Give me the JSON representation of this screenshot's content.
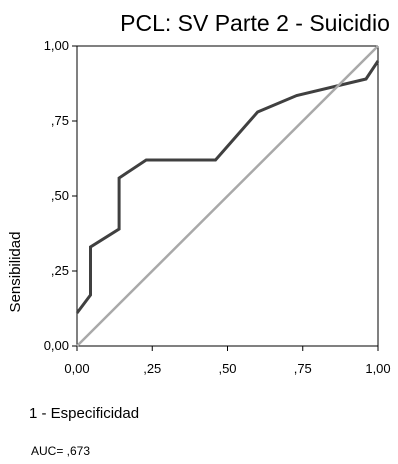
{
  "chart_data": {
    "type": "line",
    "title": "PCL: SV Parte 2 - Suicidio",
    "xlabel": "1 - Especificidad",
    "ylabel": "Sensibilidad",
    "xlim": [
      0,
      1
    ],
    "ylim": [
      0,
      1
    ],
    "x_ticks": [
      {
        "value": 0,
        "label": "0,00"
      },
      {
        "value": 0.25,
        "label": ",25"
      },
      {
        "value": 0.5,
        "label": ",50"
      },
      {
        "value": 0.75,
        "label": ",75"
      },
      {
        "value": 1,
        "label": "1,00"
      }
    ],
    "y_ticks": [
      {
        "value": 0,
        "label": "0,00"
      },
      {
        "value": 0.25,
        "label": ",25"
      },
      {
        "value": 0.5,
        "label": ",50"
      },
      {
        "value": 0.75,
        "label": ",75"
      },
      {
        "value": 1,
        "label": "1,00"
      }
    ],
    "series": [
      {
        "color": "#404040",
        "points": [
          [
            0,
            0.11
          ],
          [
            0.045,
            0.17
          ],
          [
            0.045,
            0.33
          ],
          [
            0.14,
            0.39
          ],
          [
            0.14,
            0.56
          ],
          [
            0.23,
            0.62
          ],
          [
            0.32,
            0.62
          ],
          [
            0.46,
            0.62
          ],
          [
            0.6,
            0.78
          ],
          [
            0.73,
            0.835
          ],
          [
            0.96,
            0.89
          ],
          [
            1,
            0.95
          ]
        ]
      },
      {
        "color": "#a9a9a9",
        "points": [
          [
            0,
            0
          ],
          [
            1,
            1
          ]
        ]
      }
    ],
    "grid": false,
    "legend": "none"
  },
  "annotation": {
    "auc": "AUC= ,673"
  }
}
